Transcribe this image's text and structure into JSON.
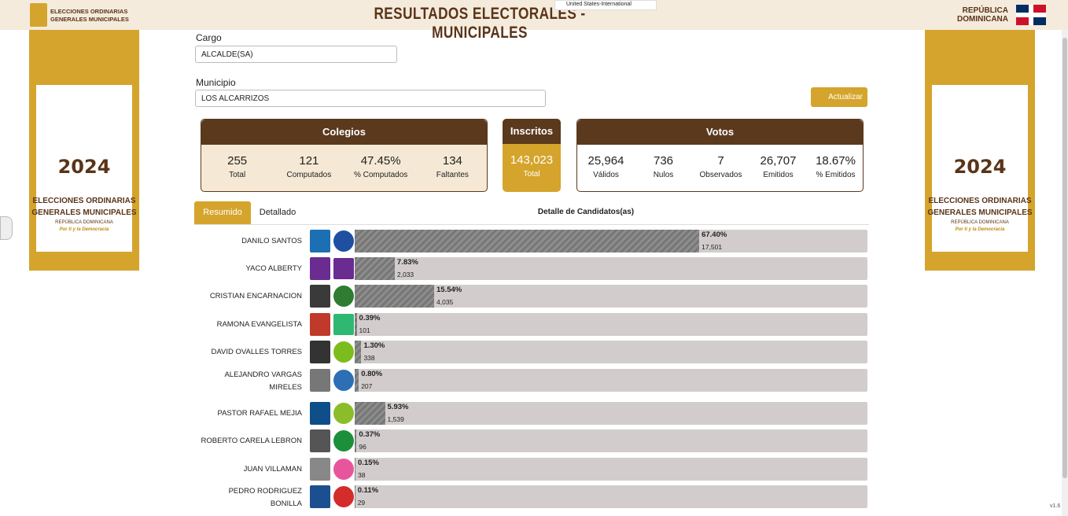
{
  "header": {
    "logo_text": [
      "ELECCIONES ORDINARIAS",
      "GENERALES MUNICIPALES"
    ],
    "title": "RESULTADOS ELECTORALES - MUNICIPALES",
    "keyboard": "United States-International",
    "country": [
      "REPÚBLICA",
      "DOMINICANA"
    ]
  },
  "banner": {
    "year": "2024",
    "lines": [
      "ELECCIONES ORDINARIAS",
      "GENERALES MUNICIPALES"
    ],
    "country": "REPÚBLICA DOMINICANA",
    "slogan": "Por ti y la Democracia"
  },
  "filters": {
    "cargo": {
      "label": "Cargo",
      "value": "ALCALDE(SA)"
    },
    "municipio": {
      "label": "Municipio",
      "value": "LOS ALCARRIZOS"
    },
    "button": "Actualizar"
  },
  "cards": {
    "colegios": {
      "title": "Colegios",
      "stats": [
        {
          "value": "255",
          "label": "Total"
        },
        {
          "value": "121",
          "label": "Computados"
        },
        {
          "value": "47.45%",
          "label": "% Computados"
        },
        {
          "value": "134",
          "label": "Faltantes"
        }
      ]
    },
    "inscritos": {
      "title": "Inscritos",
      "stats": [
        {
          "value": "143,023",
          "label": "Total"
        }
      ]
    },
    "votos": {
      "title": "Votos",
      "stats": [
        {
          "value": "25,964",
          "label": "Válidos"
        },
        {
          "value": "736",
          "label": "Nulos"
        },
        {
          "value": "7",
          "label": "Observados"
        },
        {
          "value": "26,707",
          "label": "Emitidos"
        },
        {
          "value": "18.67%",
          "label": "% Emitidos"
        }
      ]
    }
  },
  "tabs": [
    "Resumido",
    "Detallado"
  ],
  "detail_title": "Detalle de Candidatos(as)",
  "candidates": [
    {
      "name": "DANILO SANTOS",
      "pct": 67.4,
      "pct_label": "67.40%",
      "votes": 17501,
      "votes_label": "17,501"
    },
    {
      "name": "YACO ALBERTY",
      "pct": 7.83,
      "pct_label": "7.83%",
      "votes": 2033,
      "votes_label": "2,033"
    },
    {
      "name": "CRISTIAN ENCARNACION",
      "pct": 15.54,
      "pct_label": "15.54%",
      "votes": 4035,
      "votes_label": "4,035"
    },
    {
      "name": "RAMONA EVANGELISTA",
      "pct": 0.39,
      "pct_label": "0.39%",
      "votes": 101,
      "votes_label": "101"
    },
    {
      "name": "DAVID OVALLES TORRES",
      "pct": 1.3,
      "pct_label": "1.30%",
      "votes": 338,
      "votes_label": "338"
    },
    {
      "name": "ALEJANDRO VARGAS MIRELES",
      "pct": 0.8,
      "pct_label": "0.80%",
      "votes": 207,
      "votes_label": "207"
    },
    {
      "name": "PASTOR RAFAEL MEJIA",
      "pct": 5.93,
      "pct_label": "5.93%",
      "votes": 1539,
      "votes_label": "1,539"
    },
    {
      "name": "ROBERTO CARELA LEBRON",
      "pct": 0.37,
      "pct_label": "0.37%",
      "votes": 96,
      "votes_label": "96"
    },
    {
      "name": "JUAN VILLAMAN",
      "pct": 0.15,
      "pct_label": "0.15%",
      "votes": 38,
      "votes_label": "38"
    },
    {
      "name": "PEDRO RODRIGUEZ BONILLA",
      "pct": 0.11,
      "pct_label": "0.11%",
      "votes": 29,
      "votes_label": "29"
    }
  ],
  "version": "v1.6"
}
